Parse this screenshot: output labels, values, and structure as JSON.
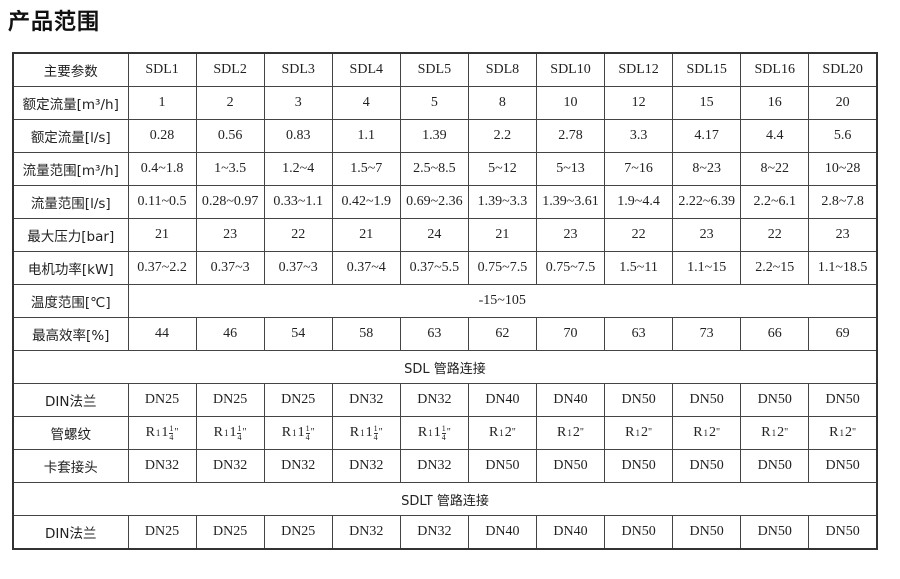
{
  "title": "产品范围",
  "header": [
    "主要参数",
    "SDL1",
    "SDL2",
    "SDL3",
    "SDL4",
    "SDL5",
    "SDL8",
    "SDL10",
    "SDL12",
    "SDL15",
    "SDL16",
    "SDL20"
  ],
  "rows": [
    {
      "label": "额定流量[m³/h]",
      "values": [
        "1",
        "2",
        "3",
        "4",
        "5",
        "8",
        "10",
        "12",
        "15",
        "16",
        "20"
      ]
    },
    {
      "label": "额定流量[l/s]",
      "values": [
        "0.28",
        "0.56",
        "0.83",
        "1.1",
        "1.39",
        "2.2",
        "2.78",
        "3.3",
        "4.17",
        "4.4",
        "5.6"
      ]
    },
    {
      "label": "流量范围[m³/h]",
      "values": [
        "0.4~1.8",
        "1~3.5",
        "1.2~4",
        "1.5~7",
        "2.5~8.5",
        "5~12",
        "5~13",
        "7~16",
        "8~23",
        "8~22",
        "10~28"
      ]
    },
    {
      "label": "流量范围[l/s]",
      "values": [
        "0.11~0.5",
        "0.28~0.97",
        "0.33~1.1",
        "0.42~1.9",
        "0.69~2.36",
        "1.39~3.3",
        "1.39~3.61",
        "1.9~4.4",
        "2.22~6.39",
        "2.2~6.1",
        "2.8~7.8"
      ]
    },
    {
      "label": "最大压力[bar]",
      "values": [
        "21",
        "23",
        "22",
        "21",
        "24",
        "21",
        "23",
        "22",
        "23",
        "22",
        "23"
      ]
    },
    {
      "label": "电机功率[kW]",
      "values": [
        "0.37~2.2",
        "0.37~3",
        "0.37~3",
        "0.37~4",
        "0.37~5.5",
        "0.75~7.5",
        "0.75~7.5",
        "1.5~11",
        "1.1~15",
        "2.2~15",
        "1.1~18.5"
      ]
    }
  ],
  "temp": {
    "label": "温度范围[℃]",
    "value": "-15~105"
  },
  "efficiency": {
    "label": "最高效率[%]",
    "values": [
      "44",
      "46",
      "54",
      "58",
      "63",
      "62",
      "70",
      "63",
      "73",
      "66",
      "69"
    ]
  },
  "sdl_section": "SDL 管路连接",
  "sdl_rows": {
    "din": {
      "label": "DIN法兰",
      "values": [
        "DN25",
        "DN25",
        "DN25",
        "DN32",
        "DN32",
        "DN40",
        "DN40",
        "DN50",
        "DN50",
        "DN50",
        "DN50"
      ]
    },
    "thread": {
      "label": "管螺纹",
      "values": [
        {
          "r": "R",
          "sub": "1",
          "whole": "1",
          "num": "1",
          "den": "4",
          "mark": "\""
        },
        {
          "r": "R",
          "sub": "1",
          "whole": "1",
          "num": "1",
          "den": "4",
          "mark": "\""
        },
        {
          "r": "R",
          "sub": "1",
          "whole": "1",
          "num": "1",
          "den": "4",
          "mark": "\""
        },
        {
          "r": "R",
          "sub": "1",
          "whole": "1",
          "num": "1",
          "den": "4",
          "mark": "\""
        },
        {
          "r": "R",
          "sub": "1",
          "whole": "1",
          "num": "1",
          "den": "4",
          "mark": "\""
        },
        {
          "r": "R",
          "sub": "1",
          "whole": "2",
          "mark": "\""
        },
        {
          "r": "R",
          "sub": "1",
          "whole": "2",
          "mark": "\""
        },
        {
          "r": "R",
          "sub": "1",
          "whole": "2",
          "mark": "\""
        },
        {
          "r": "R",
          "sub": "1",
          "whole": "2",
          "mark": "\""
        },
        {
          "r": "R",
          "sub": "1",
          "whole": "2",
          "mark": "\""
        },
        {
          "r": "R",
          "sub": "1",
          "whole": "2",
          "mark": "\""
        }
      ]
    },
    "clamp": {
      "label": "卡套接头",
      "values": [
        "DN32",
        "DN32",
        "DN32",
        "DN32",
        "DN32",
        "DN50",
        "DN50",
        "DN50",
        "DN50",
        "DN50",
        "DN50"
      ]
    }
  },
  "sdlt_section": "SDLT 管路连接",
  "sdlt_rows": {
    "din": {
      "label": "DIN法兰",
      "values": [
        "DN25",
        "DN25",
        "DN25",
        "DN32",
        "DN32",
        "DN40",
        "DN40",
        "DN50",
        "DN50",
        "DN50",
        "DN50"
      ]
    }
  }
}
